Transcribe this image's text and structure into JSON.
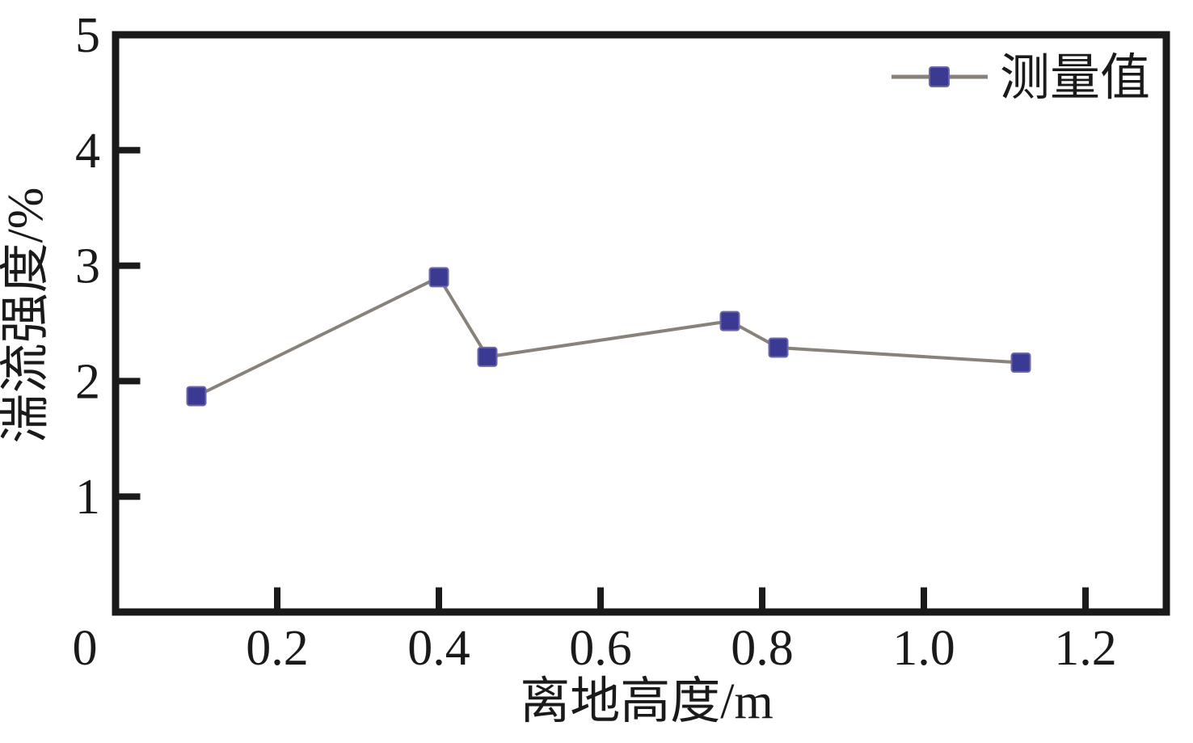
{
  "chart_data": {
    "type": "line",
    "title": "",
    "xlabel": "离地高度/m",
    "ylabel": "湍流强度/%",
    "x": [
      0.1,
      0.4,
      0.46,
      0.76,
      0.82,
      1.12
    ],
    "series": [
      {
        "name": "测量值",
        "values": [
          1.87,
          2.9,
          2.21,
          2.52,
          2.29,
          2.16
        ]
      }
    ],
    "xlim": [
      0,
      1.3
    ],
    "ylim": [
      0,
      5
    ],
    "xticks": {
      "values": [
        0,
        0.2,
        0.4,
        0.6,
        0.8,
        1.0,
        1.2
      ],
      "labels": [
        "0",
        "0.2",
        "0.4",
        "0.6",
        "0.8",
        "1.0",
        "1.2"
      ]
    },
    "yticks": {
      "values": [
        1,
        2,
        3,
        4,
        5
      ],
      "labels": [
        "1",
        "2",
        "3",
        "4",
        "5"
      ]
    },
    "grid": false,
    "legend_position": "top-right-inside",
    "legend": {
      "label": "测量值",
      "marker": "square"
    },
    "colors": {
      "axis": "#1a1a1a",
      "text": "#1a1a1a",
      "line": "#88827b",
      "marker_fill": "#3a3a93",
      "marker_edge": "#6c67ab",
      "background": "#ffffff"
    }
  }
}
